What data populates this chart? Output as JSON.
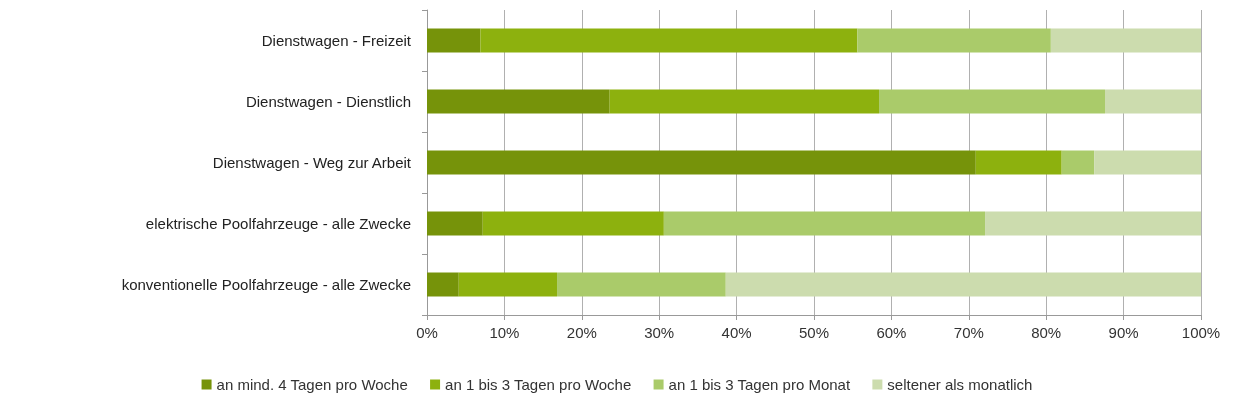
{
  "chart_data": {
    "type": "bar",
    "orientation": "horizontal",
    "stacked": true,
    "categories": [
      "Dienstwagen - Freizeit",
      "Dienstwagen - Dienstlich",
      "Dienstwagen - Weg zur Arbeit",
      "elektrische Poolfahrzeuge - alle Zwecke",
      "konventionelle Poolfahrzeuge - alle Zwecke"
    ],
    "series": [
      {
        "name": "an mind. 4 Tagen pro Woche",
        "color": "#76930a",
        "values": [
          6.9,
          23.6,
          70.9,
          7.2,
          4.1
        ]
      },
      {
        "name": "an 1 bis 3 Tagen pro Woche",
        "color": "#8db10e",
        "values": [
          48.7,
          34.8,
          11.1,
          23.4,
          12.7
        ]
      },
      {
        "name": "an 1 bis 3 Tagen pro Monat",
        "color": "#aacb6a",
        "values": [
          25.0,
          29.2,
          4.2,
          41.5,
          21.8
        ]
      },
      {
        "name": "seltener als monatlich",
        "color": "#ccdcae",
        "values": [
          19.4,
          12.4,
          13.8,
          27.9,
          61.4
        ]
      }
    ],
    "xlim": [
      0,
      100
    ],
    "xticks": [
      {
        "value": 0,
        "label": "0%"
      },
      {
        "value": 10,
        "label": "10%"
      },
      {
        "value": 20,
        "label": "20%"
      },
      {
        "value": 30,
        "label": "30%"
      },
      {
        "value": 40,
        "label": "40%"
      },
      {
        "value": 50,
        "label": "50%"
      },
      {
        "value": 60,
        "label": "60%"
      },
      {
        "value": 70,
        "label": "70%"
      },
      {
        "value": 80,
        "label": "80%"
      },
      {
        "value": 90,
        "label": "90%"
      },
      {
        "value": 100,
        "label": "100%"
      }
    ],
    "grid": "x",
    "legend": "bottom"
  }
}
